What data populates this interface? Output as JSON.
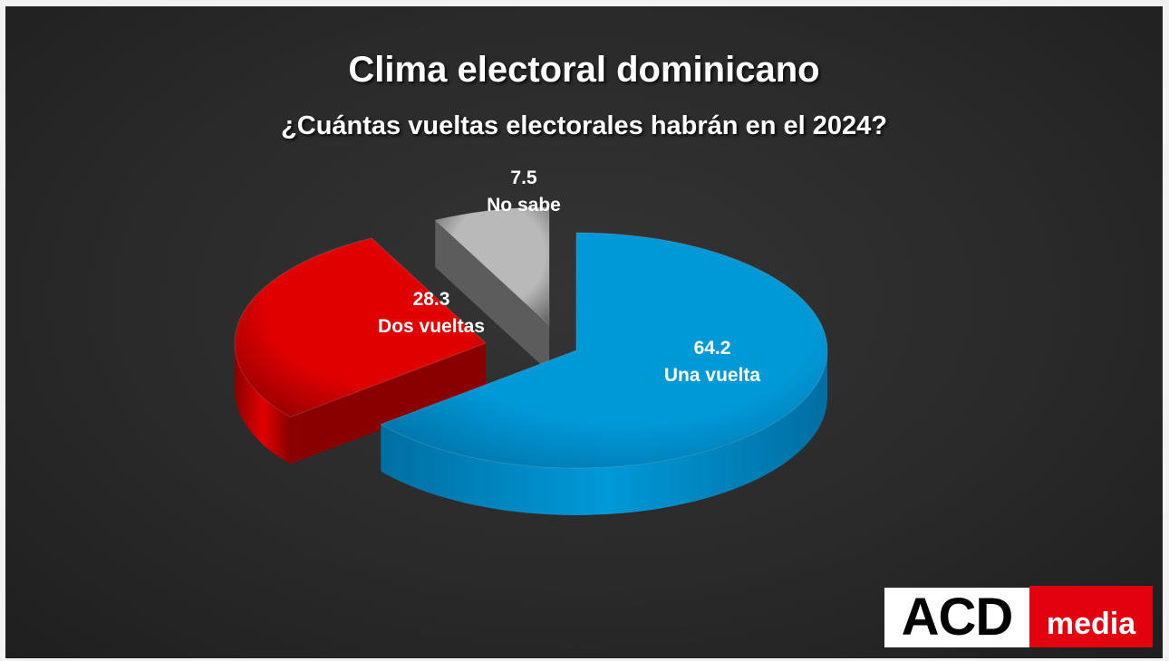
{
  "title": "Clima electoral dominicano",
  "subtitle": "¿Cuántas vueltas electorales habrán en el 2024?",
  "logo": {
    "left": "ACD",
    "right": "media"
  },
  "chart_data": {
    "type": "pie",
    "style": "3d-exploded",
    "slices": [
      {
        "label": "Una vuelta",
        "value": 64.2,
        "value_label": "64.2",
        "color": "#0099d8",
        "side_color": "#006fa3"
      },
      {
        "label": "Dos vueltas",
        "value": 28.3,
        "value_label": "28.3",
        "color": "#e10000",
        "side_color": "#8a0000"
      },
      {
        "label": "No sabe",
        "value": 7.5,
        "value_label": "7.5",
        "color": "#b9b9b9",
        "side_color": "#5c5c5c"
      }
    ]
  }
}
